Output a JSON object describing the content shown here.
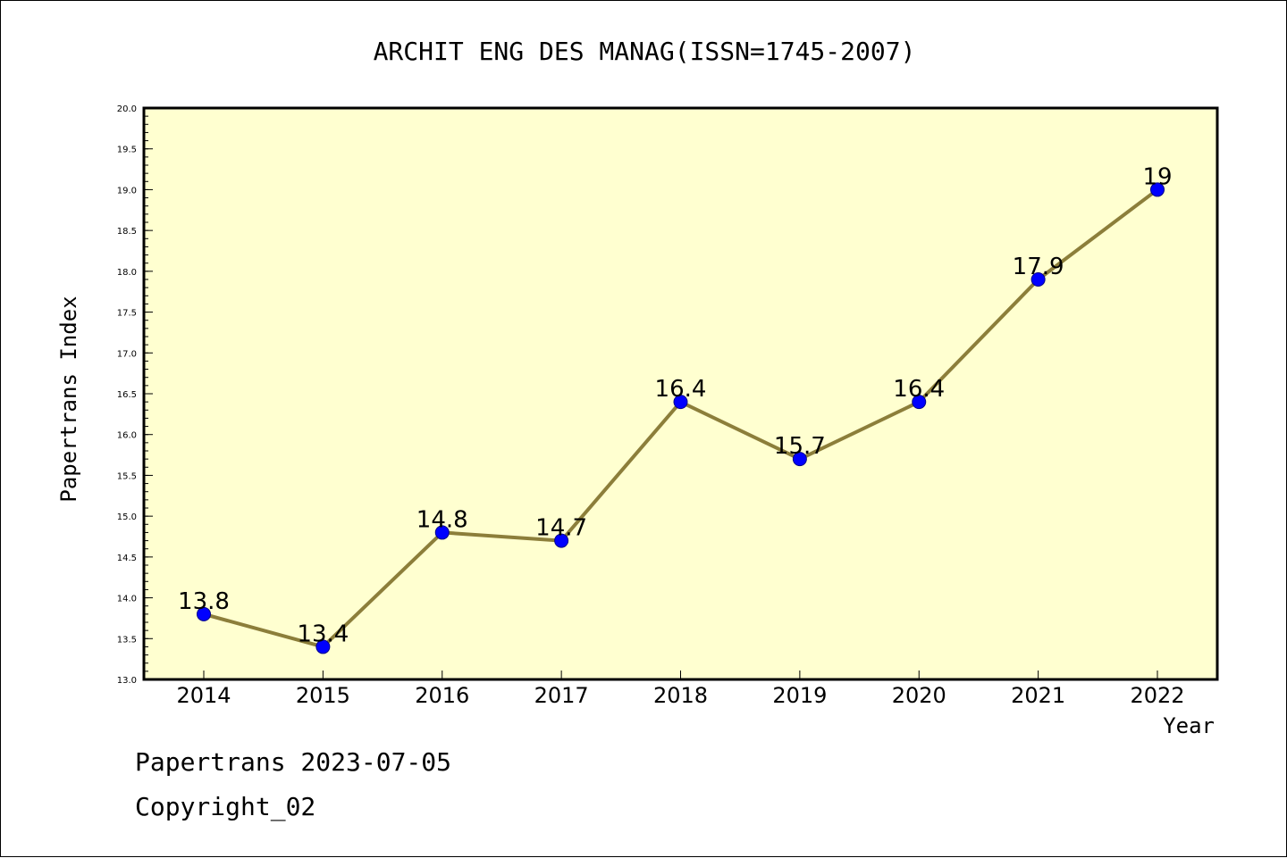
{
  "chart_data": {
    "type": "line",
    "title": "ARCHIT ENG DES MANAG(ISSN=1745-2007)",
    "xlabel": "Year",
    "ylabel": "Papertrans Index",
    "categories": [
      "2014",
      "2015",
      "2016",
      "2017",
      "2018",
      "2019",
      "2020",
      "2021",
      "2022"
    ],
    "values": [
      13.8,
      13.4,
      14.8,
      14.7,
      16.4,
      15.7,
      16.4,
      17.9,
      19
    ],
    "value_labels": [
      "13.8",
      "13.4",
      "14.8",
      "14.7",
      "16.4",
      "15.7",
      "16.4",
      "17.9",
      "19"
    ],
    "ylim": [
      13.0,
      20.0
    ],
    "yticks": [
      "13.0",
      "13.5",
      "14.0",
      "14.5",
      "15.0",
      "15.5",
      "16.0",
      "16.5",
      "17.0",
      "17.5",
      "18.0",
      "18.5",
      "19.0",
      "19.5",
      "20.0"
    ],
    "grid": false,
    "legend": "none",
    "colors": {
      "plot_background": "#ffffd0",
      "line": "#8c7e3a",
      "marker": "#0000ff"
    }
  },
  "footer": {
    "line1": "Papertrans 2023-07-05",
    "line2": "Copyright_02"
  }
}
